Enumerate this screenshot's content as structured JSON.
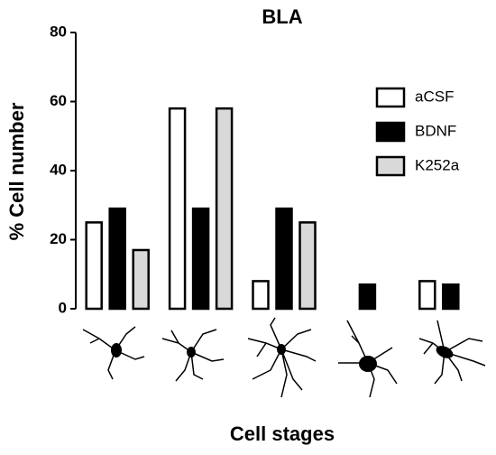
{
  "chart_data": {
    "type": "bar",
    "title": "BLA",
    "y_label": "% Cell number",
    "x_label": "Cell stages",
    "categories": [
      null,
      null,
      null,
      null,
      null
    ],
    "series": [
      {
        "name": "aCSF",
        "color": "#ffffff",
        "values": [
          25,
          58,
          8,
          0,
          8
        ]
      },
      {
        "name": "BDNF",
        "color": "#000000",
        "values": [
          29,
          29,
          29,
          7,
          7
        ]
      },
      {
        "name": "K252a",
        "color": "#d9d9d9",
        "values": [
          17,
          58,
          25,
          0,
          0
        ]
      }
    ],
    "ylim": [
      0,
      80
    ],
    "yticks": [
      0,
      20,
      40,
      60,
      80
    ],
    "grid": false,
    "legend": "upper right"
  }
}
